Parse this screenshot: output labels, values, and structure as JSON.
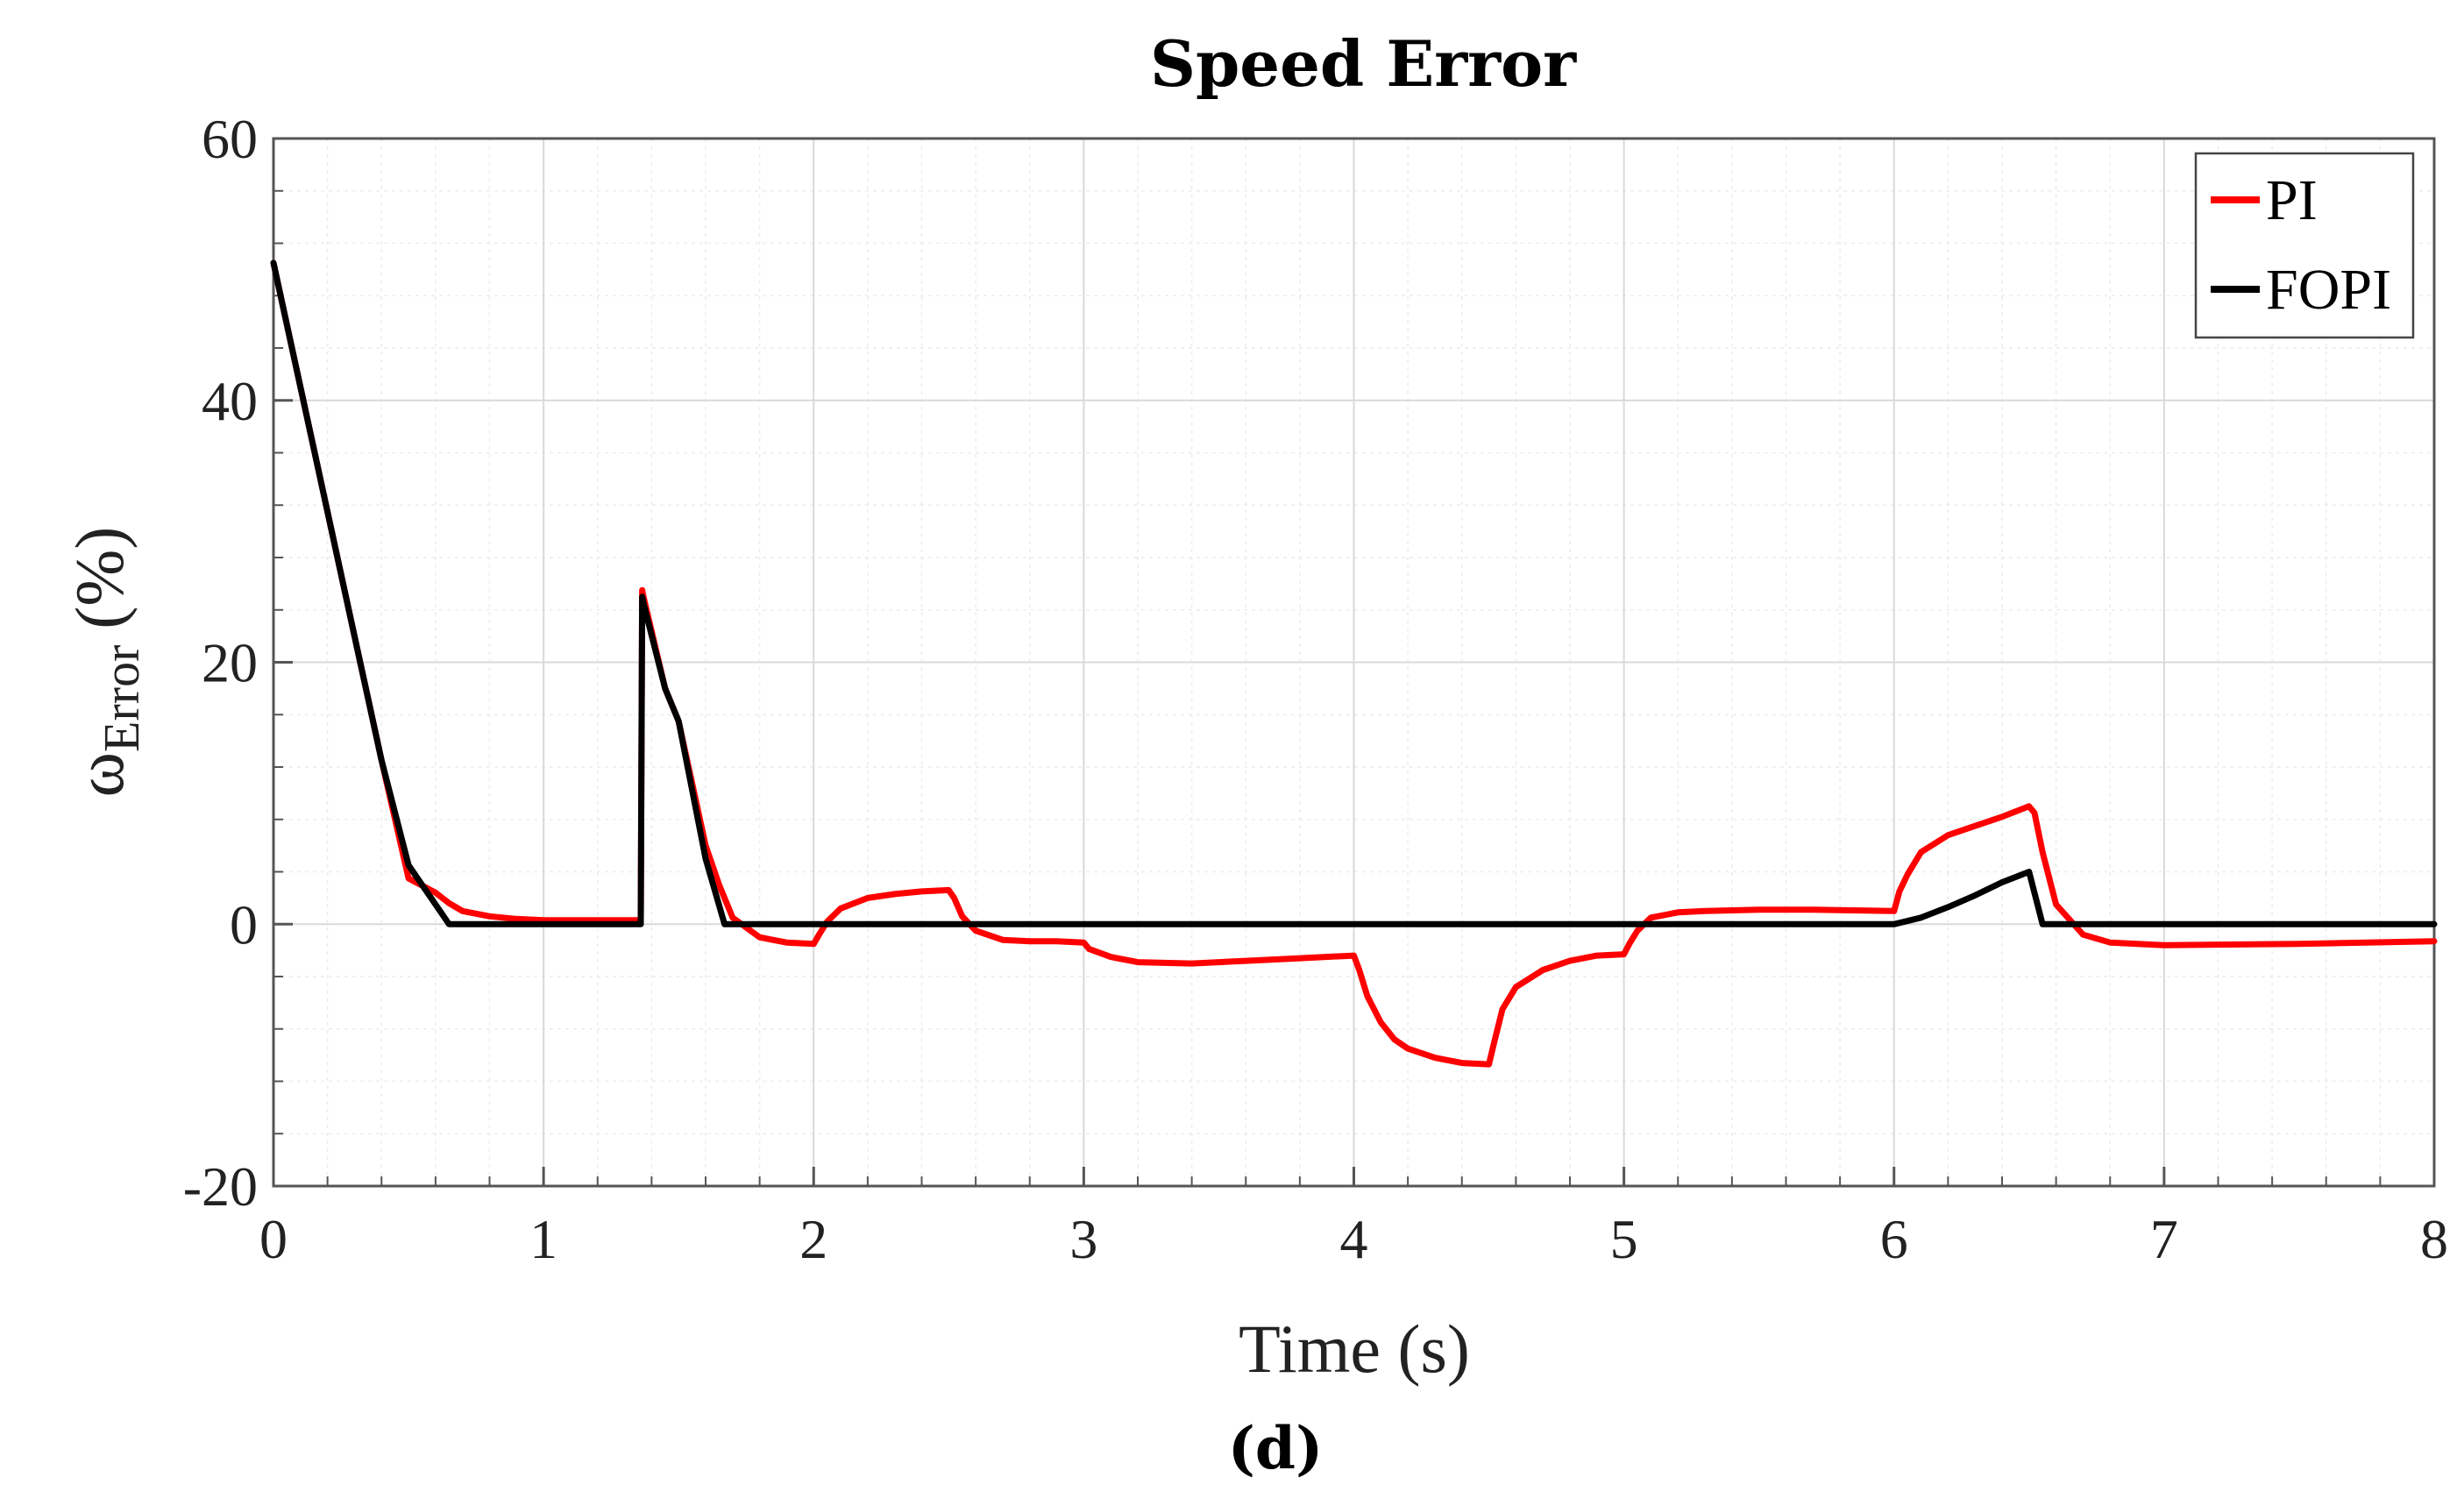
{
  "chart_data": {
    "type": "line",
    "title": "Speed Error",
    "xlabel": "Time (s)",
    "ylabel_main": "ω",
    "ylabel_sub": "Error",
    "ylabel_unit": "(%)",
    "panel_label": "(d)",
    "xlim": [
      0,
      8
    ],
    "ylim": [
      -20,
      60
    ],
    "xticks": [
      0,
      1,
      2,
      3,
      4,
      5,
      6,
      7,
      8
    ],
    "yticks": [
      -20,
      0,
      20,
      40,
      60
    ],
    "grid": true,
    "legend_position": "top-right",
    "series": [
      {
        "name": "PI",
        "color": "#ff0000",
        "x": [
          0,
          0.1,
          0.2,
          0.3,
          0.4,
          0.5,
          0.6,
          0.65,
          0.7,
          0.8,
          0.9,
          1.0,
          1.2,
          1.36,
          1.365,
          1.37,
          1.45,
          1.5,
          1.6,
          1.65,
          1.7,
          1.8,
          1.9,
          2.0,
          2.02,
          2.05,
          2.1,
          2.2,
          2.3,
          2.4,
          2.5,
          2.52,
          2.55,
          2.6,
          2.7,
          2.8,
          2.9,
          3.0,
          3.02,
          3.1,
          3.2,
          3.4,
          3.6,
          3.8,
          4.0,
          4.02,
          4.05,
          4.1,
          4.15,
          4.2,
          4.3,
          4.4,
          4.5,
          4.52,
          4.55,
          4.6,
          4.7,
          4.8,
          4.9,
          5.0,
          5.02,
          5.05,
          5.1,
          5.2,
          5.3,
          5.5,
          5.7,
          6.0,
          6.02,
          6.05,
          6.1,
          6.2,
          6.3,
          6.4,
          6.5,
          6.52,
          6.55,
          6.6,
          6.7,
          6.8,
          7.0,
          7.5,
          8.0
        ],
        "y": [
          50.5,
          41,
          31.5,
          22,
          12.5,
          3.5,
          2.4,
          1.6,
          1.0,
          0.6,
          0.4,
          0.3,
          0.3,
          0.3,
          25.5,
          25,
          18,
          15.5,
          6,
          3,
          0.5,
          -1.0,
          -1.4,
          -1.5,
          -0.8,
          0.2,
          1.2,
          2.0,
          2.3,
          2.5,
          2.6,
          2.0,
          0.6,
          -0.5,
          -1.2,
          -1.3,
          -1.3,
          -1.4,
          -1.9,
          -2.5,
          -2.9,
          -3.0,
          -2.8,
          -2.6,
          -2.4,
          -3.5,
          -5.5,
          -7.5,
          -8.8,
          -9.5,
          -10.2,
          -10.6,
          -10.7,
          -9.0,
          -6.5,
          -4.8,
          -3.5,
          -2.8,
          -2.4,
          -2.3,
          -1.5,
          -0.5,
          0.5,
          0.9,
          1.0,
          1.1,
          1.1,
          1.0,
          2.5,
          3.8,
          5.5,
          6.8,
          7.5,
          8.2,
          9.0,
          8.5,
          5.5,
          1.5,
          -0.8,
          -1.4,
          -1.6,
          -1.5,
          -1.3
        ]
      },
      {
        "name": "FOPI",
        "color": "#000000",
        "x": [
          0,
          0.1,
          0.2,
          0.3,
          0.4,
          0.5,
          0.6,
          0.65,
          1.36,
          1.365,
          1.37,
          1.45,
          1.5,
          1.6,
          1.67,
          2.0,
          3.0,
          4.0,
          5.0,
          6.0,
          6.1,
          6.2,
          6.3,
          6.4,
          6.5,
          6.55,
          7.0,
          8.0
        ],
        "y": [
          50.5,
          41,
          31.5,
          22,
          12.5,
          4.5,
          1.5,
          0,
          0,
          25,
          24.5,
          18,
          15.5,
          5,
          0,
          0,
          0,
          0,
          0,
          0,
          0.5,
          1.3,
          2.2,
          3.2,
          4.0,
          0,
          0,
          0
        ]
      }
    ]
  }
}
